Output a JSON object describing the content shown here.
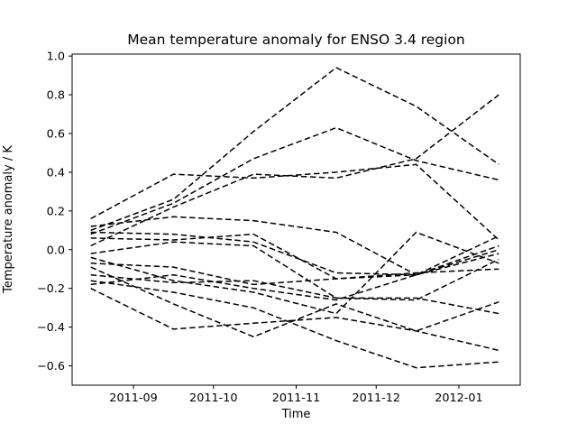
{
  "window": {
    "background": "#ffffff"
  },
  "chart_data": {
    "type": "line",
    "title": "Mean temperature anomaly for ENSO 3.4 region",
    "xlabel": "Time",
    "ylabel": "Temperature anomaly / K",
    "grid": false,
    "legend": "none",
    "line_style": {
      "color": "#000000",
      "dash": "6.5 3.5",
      "width": 1.5
    },
    "x": [
      "2011-08-16",
      "2011-09-16",
      "2011-10-16",
      "2011-11-16",
      "2011-12-16",
      "2012-01-16"
    ],
    "xlim": [
      "2011-08-09",
      "2012-01-24"
    ],
    "ylim": [
      -0.7,
      1.01
    ],
    "x_ticks": [
      {
        "value": "2011-09-01",
        "label": "2011-09"
      },
      {
        "value": "2011-10-01",
        "label": "2011-10"
      },
      {
        "value": "2011-11-01",
        "label": "2011-11"
      },
      {
        "value": "2011-12-01",
        "label": "2011-12"
      },
      {
        "value": "2012-01-01",
        "label": "2012-01"
      }
    ],
    "y_ticks": [
      {
        "value": 1.0,
        "label": "1.0"
      },
      {
        "value": 0.8,
        "label": "0.8"
      },
      {
        "value": 0.6,
        "label": "0.6"
      },
      {
        "value": 0.4,
        "label": "0.4"
      },
      {
        "value": 0.2,
        "label": "0.2"
      },
      {
        "value": 0.0,
        "label": "0.0"
      },
      {
        "value": -0.2,
        "label": "−0.2"
      },
      {
        "value": -0.4,
        "label": "−0.4"
      },
      {
        "value": -0.6,
        "label": "−0.6"
      }
    ],
    "series": [
      {
        "values": [
          0.1,
          0.26,
          0.61,
          0.94,
          0.74,
          0.44
        ]
      },
      {
        "values": [
          0.08,
          0.24,
          0.47,
          0.63,
          0.46,
          0.36
        ]
      },
      {
        "values": [
          0.02,
          0.22,
          0.39,
          0.37,
          0.47,
          0.8
        ]
      },
      {
        "values": [
          0.16,
          0.39,
          0.37,
          0.4,
          0.44,
          0.05
        ]
      },
      {
        "values": [
          0.12,
          0.17,
          0.15,
          0.09,
          -0.13,
          0.02
        ]
      },
      {
        "values": [
          0.09,
          0.08,
          0.04,
          -0.12,
          -0.13,
          -0.02
        ]
      },
      {
        "values": [
          0.06,
          0.05,
          0.08,
          -0.15,
          -0.13,
          0.0
        ]
      },
      {
        "values": [
          -0.02,
          0.04,
          0.02,
          -0.25,
          -0.26,
          -0.05
        ]
      },
      {
        "values": [
          -0.04,
          -0.16,
          -0.22,
          -0.33,
          0.09,
          -0.07
        ]
      },
      {
        "values": [
          -0.07,
          -0.09,
          -0.18,
          -0.15,
          -0.12,
          -0.1
        ]
      },
      {
        "values": [
          -0.13,
          -0.17,
          -0.16,
          -0.25,
          -0.25,
          -0.33
        ]
      },
      {
        "values": [
          -0.16,
          -0.22,
          -0.3,
          -0.47,
          -0.61,
          -0.58
        ]
      },
      {
        "values": [
          -0.09,
          -0.28,
          -0.45,
          -0.28,
          -0.42,
          -0.27
        ]
      },
      {
        "values": [
          -0.2,
          -0.41,
          -0.38,
          -0.35,
          -0.42,
          -0.52
        ]
      },
      {
        "values": [
          -0.18,
          -0.13,
          -0.2,
          -0.26,
          -0.13,
          0.07
        ]
      }
    ]
  }
}
